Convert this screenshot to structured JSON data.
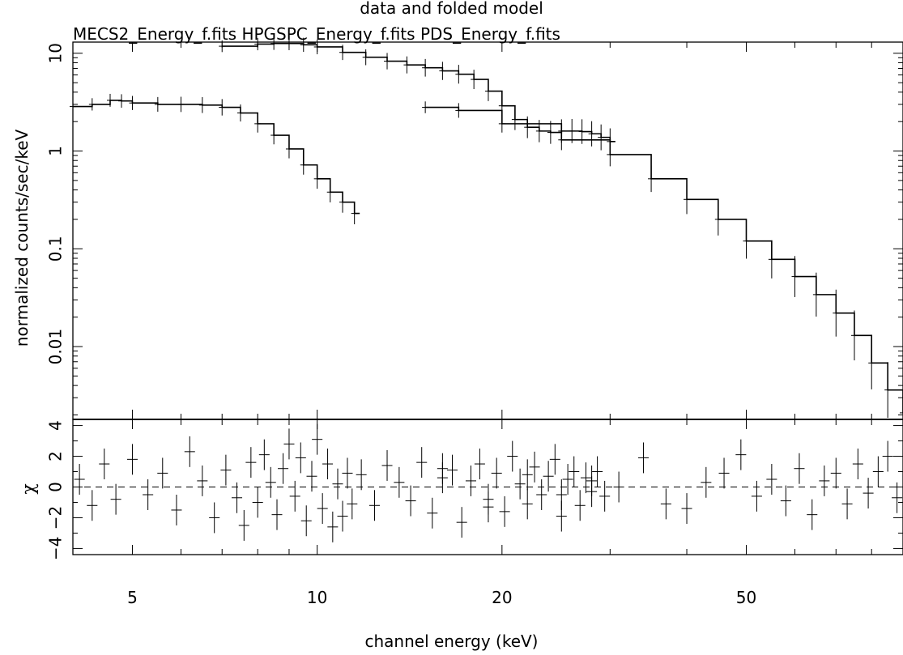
{
  "chart_data": [
    {
      "type": "line",
      "panel": "spectrum",
      "title": "data and folded model",
      "subtitle": "MECS2_Energy_f.fits HPGSPC_Energy_f.fits PDS_Energy_f.fits",
      "ylabel": "normalized counts/sec/keV",
      "xlabel": "",
      "xscale": "log",
      "yscale": "log",
      "xlim": [
        4.0,
        90.0
      ],
      "ylim": [
        0.0018,
        13
      ],
      "yticks": [
        10,
        1,
        0.1,
        0.01
      ],
      "ytick_labels": [
        "10",
        "1",
        "0.1",
        "0.01"
      ],
      "grid": false,
      "series": [
        {
          "name": "MECS2_Energy_f.fits",
          "x": [
            4.0,
            4.3,
            4.6,
            4.8,
            5.0,
            5.5,
            6.0,
            6.5,
            7.0,
            7.5,
            8.0,
            8.5,
            9.0,
            9.5,
            10.0,
            10.5,
            11.0,
            11.5
          ],
          "y": [
            2.85,
            3.0,
            3.3,
            3.25,
            3.1,
            3.0,
            3.0,
            2.95,
            2.8,
            2.45,
            1.9,
            1.45,
            1.05,
            0.72,
            0.52,
            0.38,
            0.3,
            0.23
          ]
        },
        {
          "name": "HPGSPC_Energy_f.fits",
          "x": [
            7.0,
            8.0,
            8.5,
            9.0,
            9.5,
            10.0,
            11.0,
            12.0,
            13.0,
            14.0,
            15.0,
            16.0,
            17.0,
            18.0,
            19.0,
            20.0,
            21.0,
            22.0,
            23.0,
            24.0,
            25.0,
            26.0,
            27.0,
            28.0,
            29.0,
            30.0
          ],
          "y": [
            11.8,
            12.4,
            12.6,
            12.6,
            12.2,
            11.6,
            10.2,
            9.1,
            8.3,
            7.6,
            7.1,
            6.6,
            6.1,
            5.4,
            4.1,
            2.9,
            2.1,
            1.75,
            1.6,
            1.55,
            1.6,
            1.6,
            1.58,
            1.5,
            1.38,
            1.25
          ]
        },
        {
          "name": "PDS_Energy_f.fits",
          "x": [
            15.0,
            17.0,
            20.0,
            25.0,
            30.0,
            35.0,
            40.0,
            45.0,
            50.0,
            55.0,
            60.0,
            65.0,
            70.0,
            75.0,
            80.0,
            85.0,
            90.0
          ],
          "y": [
            2.8,
            2.6,
            1.9,
            1.3,
            0.92,
            0.52,
            0.32,
            0.2,
            0.12,
            0.078,
            0.052,
            0.034,
            0.022,
            0.013,
            0.0068,
            0.0036,
            0.0021
          ]
        }
      ]
    },
    {
      "type": "scatter",
      "panel": "residuals",
      "title": "",
      "xlabel": "channel energy (keV)",
      "ylabel": "χ",
      "xscale": "log",
      "xlim": [
        4.0,
        90.0
      ],
      "ylim": [
        -4.4,
        4.4
      ],
      "xticks": [
        5,
        10,
        20,
        50
      ],
      "xtick_labels": [
        "5",
        "10",
        "20",
        "50"
      ],
      "yticks": [
        4,
        2,
        0,
        -2,
        -4
      ],
      "ytick_labels": [
        "4",
        "2",
        "0",
        "−2",
        "−4"
      ],
      "reference_line": 0,
      "grid": false,
      "series": [
        {
          "name": "MECS2_Energy_f.fits",
          "x": [
            4.1,
            4.3,
            4.5,
            4.7,
            5.0,
            5.3,
            5.6,
            5.9,
            6.2,
            6.5,
            6.8,
            7.1,
            7.4,
            7.6,
            7.8,
            8.0,
            8.2,
            8.4,
            8.6,
            8.8,
            9.0,
            9.2,
            9.4,
            9.6,
            9.8,
            10.0,
            10.2,
            10.4,
            10.6,
            10.8,
            11.0,
            11.2,
            11.4
          ],
          "y": [
            0.5,
            -1.2,
            1.5,
            -0.8,
            1.8,
            -0.5,
            0.9,
            -1.5,
            2.3,
            0.4,
            -2.0,
            1.1,
            -0.7,
            -2.5,
            1.6,
            -1.0,
            2.1,
            0.3,
            -1.8,
            1.2,
            2.8,
            -0.6,
            1.9,
            -2.2,
            0.7,
            3.1,
            -1.4,
            1.5,
            -2.6,
            0.2,
            -1.9,
            0.9,
            -1.1
          ],
          "yerr": 1.0
        },
        {
          "name": "HPGSPC_Energy_f.fits",
          "x": [
            11.8,
            12.4,
            13.0,
            13.6,
            14.2,
            14.8,
            15.4,
            16.0,
            16.6,
            17.2,
            17.8,
            18.4,
            19.0,
            19.6,
            20.2,
            20.8,
            21.4,
            22.0,
            22.6,
            23.2,
            23.8,
            24.4,
            25.0,
            25.6,
            26.2,
            26.8,
            27.4,
            28.0,
            28.6,
            29.4
          ],
          "y": [
            0.8,
            -1.2,
            1.4,
            0.3,
            -0.9,
            1.6,
            -1.7,
            0.6,
            1.1,
            -2.3,
            0.4,
            1.5,
            -0.8,
            0.9,
            -1.6,
            2.0,
            0.2,
            -1.1,
            1.3,
            -0.5,
            0.7,
            1.8,
            -1.9,
            0.5,
            1.0,
            -1.2,
            0.6,
            -0.3,
            1.0,
            -0.6
          ],
          "yerr": 1.0
        },
        {
          "name": "PDS_Energy_f.fits",
          "x": [
            16.0,
            19.0,
            22.0,
            25.0,
            28.0,
            31.0,
            34.0,
            37.0,
            40.0,
            43.0,
            46.0,
            49.0,
            52.0,
            55.0,
            58.0,
            61.0,
            64.0,
            67.0,
            70.0,
            73.0,
            76.0,
            79.0,
            82.0,
            85.0,
            88.0
          ],
          "y": [
            1.2,
            -1.3,
            0.8,
            -0.5,
            0.4,
            0.0,
            1.9,
            -1.1,
            -1.4,
            0.3,
            0.9,
            2.1,
            -0.6,
            0.5,
            -0.9,
            1.2,
            -1.8,
            0.4,
            0.9,
            -1.1,
            1.5,
            -0.4,
            1.0,
            2.0,
            -0.7
          ],
          "yerr": 1.0
        }
      ]
    }
  ]
}
